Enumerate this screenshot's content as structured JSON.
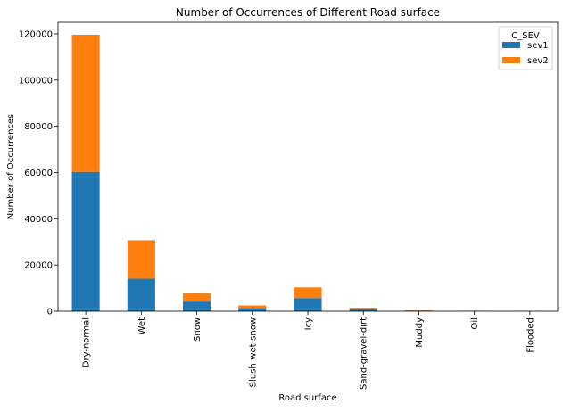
{
  "chart_data": {
    "type": "bar",
    "stacked": true,
    "title": "Number of Occurrences of Different Road surface",
    "xlabel": "Road surface",
    "ylabel": "Number of Occurrences",
    "categories": [
      "Dry-normal",
      "Wet",
      "Snow",
      "Slush-wet-snow",
      "Icy",
      "Sand-gravel-dirt",
      "Muddy",
      "Oil",
      "Flooded"
    ],
    "series": [
      {
        "name": "sev1",
        "color": "#1f77b4",
        "values": [
          60300,
          14100,
          4200,
          1400,
          5700,
          900,
          250,
          80,
          40
        ]
      },
      {
        "name": "sev2",
        "color": "#ff7f0e",
        "values": [
          59300,
          16600,
          3700,
          1100,
          4600,
          600,
          150,
          60,
          30
        ]
      }
    ],
    "ylim": [
      0,
      125000
    ],
    "yticks": [
      0,
      20000,
      40000,
      60000,
      80000,
      100000,
      120000
    ],
    "ytick_labels": [
      "0",
      "20000",
      "40000",
      "60000",
      "80000",
      "100000",
      "120000"
    ],
    "legend": {
      "title": "C_SEV",
      "position": "top-right"
    },
    "grid": false
  }
}
